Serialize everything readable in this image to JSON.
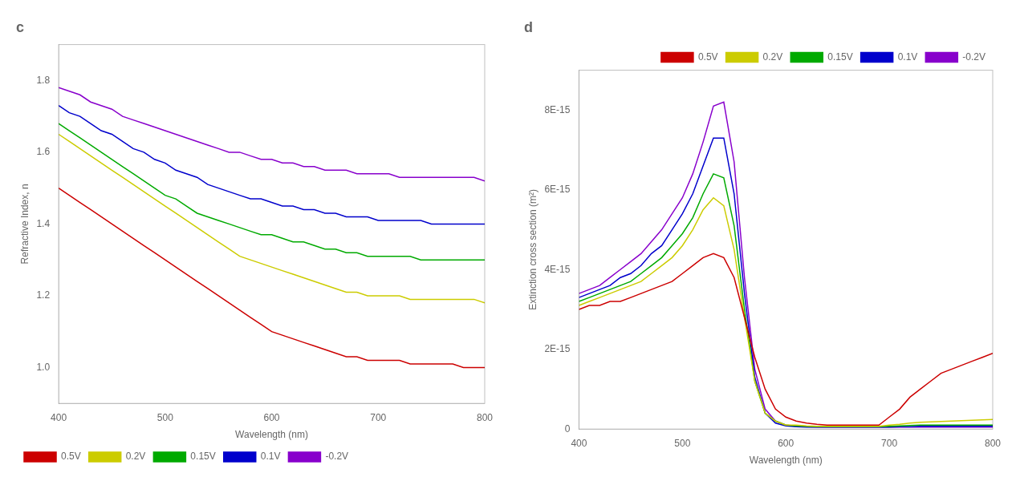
{
  "chart_data": [
    {
      "type": "line",
      "title": "c",
      "x": [
        400,
        410,
        420,
        430,
        440,
        450,
        460,
        470,
        480,
        490,
        500,
        510,
        520,
        530,
        540,
        550,
        560,
        570,
        580,
        590,
        600,
        610,
        620,
        630,
        640,
        650,
        660,
        670,
        680,
        690,
        700,
        710,
        720,
        730,
        740,
        750,
        760,
        770,
        780,
        790,
        800
      ],
      "series": [
        {
          "name": "0.5V",
          "color": "#cc0000",
          "values": [
            1.5,
            1.48,
            1.46,
            1.44,
            1.42,
            1.4,
            1.38,
            1.36,
            1.34,
            1.32,
            1.3,
            1.28,
            1.26,
            1.24,
            1.22,
            1.2,
            1.18,
            1.16,
            1.14,
            1.12,
            1.1,
            1.09,
            1.08,
            1.07,
            1.06,
            1.05,
            1.04,
            1.03,
            1.03,
            1.02,
            1.02,
            1.02,
            1.02,
            1.01,
            1.01,
            1.01,
            1.01,
            1.01,
            1.0,
            1.0,
            1.0
          ]
        },
        {
          "name": "0.2V",
          "color": "#cccc00",
          "values": [
            1.65,
            1.63,
            1.61,
            1.59,
            1.57,
            1.55,
            1.53,
            1.51,
            1.49,
            1.47,
            1.45,
            1.43,
            1.41,
            1.39,
            1.37,
            1.35,
            1.33,
            1.31,
            1.3,
            1.29,
            1.28,
            1.27,
            1.26,
            1.25,
            1.24,
            1.23,
            1.22,
            1.21,
            1.21,
            1.2,
            1.2,
            1.2,
            1.2,
            1.19,
            1.19,
            1.19,
            1.19,
            1.19,
            1.19,
            1.19,
            1.18
          ]
        },
        {
          "name": "0.15V",
          "color": "#00aa00",
          "values": [
            1.68,
            1.66,
            1.64,
            1.62,
            1.6,
            1.58,
            1.56,
            1.54,
            1.52,
            1.5,
            1.48,
            1.47,
            1.45,
            1.43,
            1.42,
            1.41,
            1.4,
            1.39,
            1.38,
            1.37,
            1.37,
            1.36,
            1.35,
            1.35,
            1.34,
            1.33,
            1.33,
            1.32,
            1.32,
            1.31,
            1.31,
            1.31,
            1.31,
            1.31,
            1.3,
            1.3,
            1.3,
            1.3,
            1.3,
            1.3,
            1.3
          ]
        },
        {
          "name": "0.1V",
          "color": "#0000cc",
          "values": [
            1.73,
            1.71,
            1.7,
            1.68,
            1.66,
            1.65,
            1.63,
            1.61,
            1.6,
            1.58,
            1.57,
            1.55,
            1.54,
            1.53,
            1.51,
            1.5,
            1.49,
            1.48,
            1.47,
            1.47,
            1.46,
            1.45,
            1.45,
            1.44,
            1.44,
            1.43,
            1.43,
            1.42,
            1.42,
            1.42,
            1.41,
            1.41,
            1.41,
            1.41,
            1.41,
            1.4,
            1.4,
            1.4,
            1.4,
            1.4,
            1.4
          ]
        },
        {
          "name": "-0.2V",
          "color": "#8800cc",
          "values": [
            1.78,
            1.77,
            1.76,
            1.74,
            1.73,
            1.72,
            1.7,
            1.69,
            1.68,
            1.67,
            1.66,
            1.65,
            1.64,
            1.63,
            1.62,
            1.61,
            1.6,
            1.6,
            1.59,
            1.58,
            1.58,
            1.57,
            1.57,
            1.56,
            1.56,
            1.55,
            1.55,
            1.55,
            1.54,
            1.54,
            1.54,
            1.54,
            1.53,
            1.53,
            1.53,
            1.53,
            1.53,
            1.53,
            1.53,
            1.53,
            1.52
          ]
        }
      ],
      "xlabel": "Wavelength (nm)",
      "ylabel": "Refractive Index, n",
      "xlim": [
        400,
        800
      ],
      "xticks": [
        400,
        500,
        600,
        700,
        800
      ],
      "ylim": [
        0.9,
        1.9
      ],
      "yticks": [
        {
          "value": 1.0,
          "label": "1.0"
        },
        1.2,
        1.4,
        1.6,
        1.8
      ],
      "grid": false,
      "legend": "lower left"
    },
    {
      "type": "line",
      "title": "d",
      "x": [
        400,
        410,
        420,
        430,
        440,
        450,
        460,
        470,
        480,
        490,
        500,
        510,
        520,
        530,
        540,
        550,
        560,
        570,
        580,
        590,
        600,
        610,
        620,
        630,
        640,
        650,
        660,
        670,
        680,
        690,
        700,
        710,
        720,
        730,
        740,
        750,
        760,
        770,
        780,
        790,
        800
      ],
      "series": [
        {
          "name": "0.5V",
          "color": "#cc0000",
          "values": [
            3e-15,
            3.1e-15,
            3.1e-15,
            3.2e-15,
            3.2e-15,
            3.3e-15,
            3.4e-15,
            3.5e-15,
            3.6e-15,
            3.7e-15,
            3.9e-15,
            4.1e-15,
            4.3e-15,
            4.4e-15,
            4.3e-15,
            3.8e-15,
            2.8e-15,
            1.8e-15,
            1e-15,
            5e-16,
            3e-16,
            2e-16,
            1.5e-16,
            1.2e-16,
            1e-16,
            1e-16,
            1e-16,
            1e-16,
            1e-16,
            1e-16,
            3e-16,
            5e-16,
            8e-16,
            1e-15,
            1.2e-15,
            1.4e-15,
            1.5e-15,
            1.6e-15,
            1.7e-15,
            1.8e-15,
            1.9e-15
          ]
        },
        {
          "name": "0.2V",
          "color": "#cccc00",
          "values": [
            3.1e-15,
            3.2e-15,
            3.3e-15,
            3.4e-15,
            3.5e-15,
            3.6e-15,
            3.7e-15,
            3.9e-15,
            4.1e-15,
            4.3e-15,
            4.6e-15,
            5e-15,
            5.5e-15,
            5.8e-15,
            5.6e-15,
            4.5e-15,
            2.8e-15,
            1.2e-15,
            4e-16,
            2e-16,
            1e-16,
            1e-16,
            8e-17,
            7e-17,
            7e-17,
            7e-17,
            7e-17,
            7e-17,
            7e-17,
            7e-17,
            1e-16,
            1.2e-16,
            1.5e-16,
            1.7e-16,
            1.8e-16,
            1.9e-16,
            2e-16,
            2.1e-16,
            2.2e-16,
            2.3e-16,
            2.4e-16
          ]
        },
        {
          "name": "0.15V",
          "color": "#00aa00",
          "values": [
            3.2e-15,
            3.3e-15,
            3.4e-15,
            3.5e-15,
            3.6e-15,
            3.7e-15,
            3.9e-15,
            4.1e-15,
            4.3e-15,
            4.6e-15,
            4.9e-15,
            5.3e-15,
            5.9e-15,
            6.4e-15,
            6.3e-15,
            5.1e-15,
            3e-15,
            1.2e-15,
            4e-16,
            2e-16,
            1e-16,
            8e-17,
            7e-17,
            6e-17,
            6e-17,
            6e-17,
            6e-17,
            6e-17,
            6e-17,
            6e-17,
            7e-17,
            8e-17,
            9e-17,
            1e-16,
            1e-16,
            1e-16,
            1e-16,
            1e-16,
            1e-16,
            1e-16,
            1e-16
          ]
        },
        {
          "name": "0.1V",
          "color": "#0000cc",
          "values": [
            3.3e-15,
            3.4e-15,
            3.5e-15,
            3.6e-15,
            3.8e-15,
            3.9e-15,
            4.1e-15,
            4.4e-15,
            4.6e-15,
            5e-15,
            5.4e-15,
            5.9e-15,
            6.6e-15,
            7.3e-15,
            7.3e-15,
            5.9e-15,
            3.4e-15,
            1.3e-15,
            4e-16,
            1.5e-16,
            8e-17,
            6e-17,
            5e-17,
            5e-17,
            5e-17,
            5e-17,
            5e-17,
            5e-17,
            5e-17,
            5e-17,
            5e-17,
            6e-17,
            6e-17,
            7e-17,
            7e-17,
            7e-17,
            7e-17,
            7e-17,
            7e-17,
            7e-17,
            7e-17
          ]
        },
        {
          "name": "-0.2V",
          "color": "#8800cc",
          "values": [
            3.4e-15,
            3.5e-15,
            3.6e-15,
            3.8e-15,
            4e-15,
            4.2e-15,
            4.4e-15,
            4.7e-15,
            5e-15,
            5.4e-15,
            5.8e-15,
            6.4e-15,
            7.2e-15,
            8.1e-15,
            8.2e-15,
            6.7e-15,
            3.8e-15,
            1.5e-15,
            5e-16,
            2e-16,
            1e-16,
            7e-17,
            6e-17,
            5e-17,
            5e-17,
            5e-17,
            5e-17,
            5e-17,
            5e-17,
            5e-17,
            5e-17,
            5e-17,
            5e-17,
            5e-17,
            5e-17,
            5e-17,
            5e-17,
            5e-17,
            5e-17,
            5e-17,
            5e-17
          ]
        }
      ],
      "xlabel": "Wavelength (nm)",
      "ylabel": "Extinction cross section (m²)",
      "xlim": [
        400,
        800
      ],
      "xticks": [
        400,
        500,
        600,
        700,
        800
      ],
      "ylim": [
        0,
        9e-15
      ],
      "yticks": [
        0,
        {
          "value": 2e-15,
          "label": "2E-15"
        },
        {
          "value": 4e-15,
          "label": "4E-15"
        },
        {
          "value": 6e-15,
          "label": "6E-15"
        },
        {
          "value": 8e-15,
          "label": "8E-15"
        }
      ],
      "grid": false,
      "legend": "upper right"
    }
  ]
}
